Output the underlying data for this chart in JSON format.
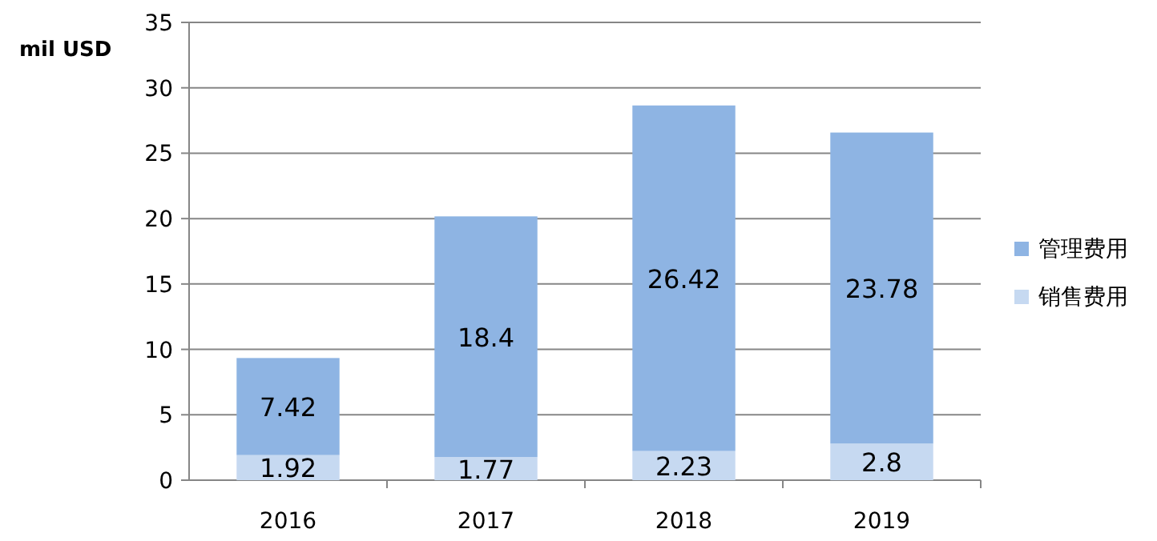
{
  "chart_data": {
    "type": "bar",
    "ylabel": "mil USD",
    "categories": [
      "2016",
      "2017",
      "2018",
      "2019"
    ],
    "stacked": true,
    "data_labels": true,
    "ylim": [
      0,
      35
    ],
    "yticks": [
      0,
      5,
      10,
      15,
      20,
      25,
      30,
      35
    ],
    "grid": "y",
    "legend": "right",
    "series": [
      {
        "name": "销售费用",
        "color": "#c6d9f1",
        "values": [
          1.92,
          1.77,
          2.23,
          2.8
        ]
      },
      {
        "name": "管理费用",
        "color": "#8eb4e3",
        "values": [
          7.42,
          18.4,
          26.42,
          23.78
        ]
      }
    ]
  }
}
